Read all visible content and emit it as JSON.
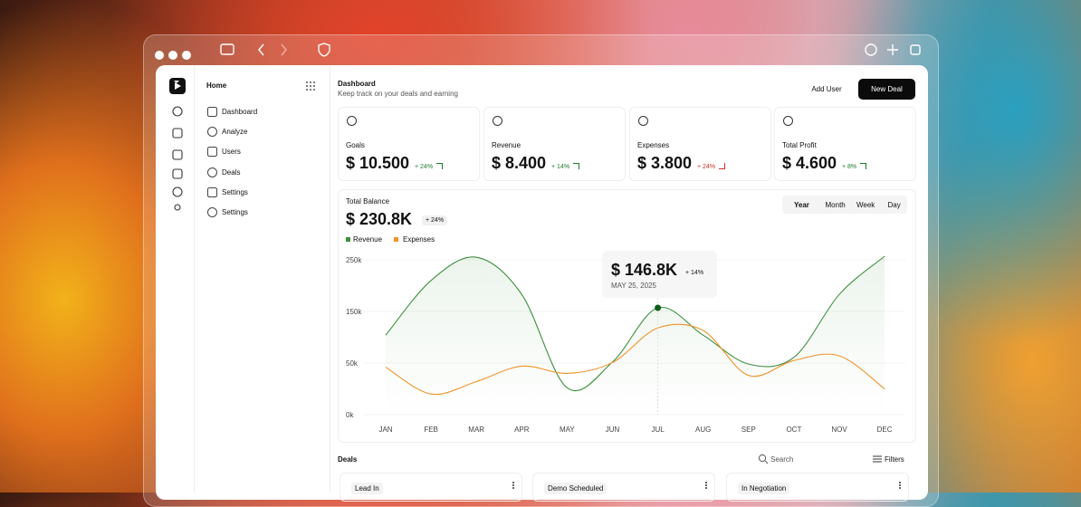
{
  "sidebar": {
    "title": "Home",
    "nav": [
      "Dashboard",
      "Analyze",
      "Users",
      "Deals",
      "Settings",
      "Settings"
    ]
  },
  "header": {
    "title": "Dashboard",
    "subtitle": "Keep track on your deals and earning",
    "secondary_button": "Add User",
    "primary_button": "New Deal"
  },
  "stats": [
    {
      "label": "Goals",
      "value": "$ 10.500",
      "change": "+ 24%"
    },
    {
      "label": "Revenue",
      "value": "$ 8.400",
      "change": "+ 14%"
    },
    {
      "label": "Expenses",
      "value": "$ 3.800",
      "change": "+ 24%"
    },
    {
      "label": "Total Profit",
      "value": "$ 4.600",
      "change": "+ 8%"
    }
  ],
  "balance": {
    "label": "Total Balance",
    "value": "$ 230.8K",
    "change": "+ 24%",
    "periods": [
      "Year",
      "Month",
      "Week",
      "Day"
    ]
  },
  "chart_data": {
    "type": "line",
    "categories": [
      "JAN",
      "FEB",
      "MAR",
      "APR",
      "MAY",
      "JUN",
      "JUL",
      "AUG",
      "SEP",
      "OCT",
      "NOV",
      "DEC"
    ],
    "series": [
      {
        "name": "Revenue",
        "color": "#3f8f3f",
        "values": [
          104000,
          210000,
          255000,
          183000,
          26000,
          52000,
          157000,
          104000,
          49000,
          61000,
          183000,
          257000
        ]
      },
      {
        "name": "Expenses",
        "color": "#ef9329",
        "values": [
          46000,
          20000,
          32000,
          47000,
          40000,
          51000,
          118000,
          113000,
          38000,
          55000,
          64000,
          25000
        ]
      }
    ],
    "ylim": [
      0,
      250000
    ],
    "yticks": [
      {
        "value": 0,
        "label": "0k"
      },
      {
        "value": 50000,
        "label": "50k"
      },
      {
        "value": 150000,
        "label": "150k"
      },
      {
        "value": 250000,
        "label": "250k"
      }
    ],
    "tooltip": {
      "value": "$ 146.8K",
      "change": "+ 14%",
      "date": "MAY 25, 2025"
    }
  },
  "deals": {
    "title": "Deals",
    "search": "Search",
    "filters": "Filters",
    "columns": [
      "Lead In",
      "Demo Scheduled",
      "In Negotiation"
    ]
  }
}
